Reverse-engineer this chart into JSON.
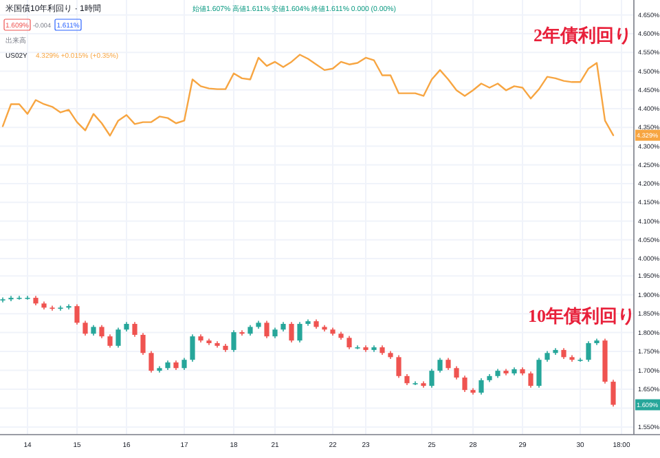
{
  "chart_data": {
    "type": "candlestick",
    "title": "米国債10年利回り · 1時間",
    "annotations": [
      "始値1.607% 高値1.611% 安値1.604% 終値1.611% 0.000 (0.00%)",
      "1.609%",
      "-0.004",
      "1.611%",
      "出来高",
      "4.329% +0.015% (+0.35%)",
      "2年債利回り",
      "10年債利回り",
      "4.329%",
      "1.609%"
    ],
    "categories": [
      null,
      null,
      null,
      "14",
      null,
      null,
      null,
      null,
      null,
      "15",
      null,
      null,
      null,
      null,
      null,
      "16",
      null,
      null,
      null,
      null,
      null,
      null,
      "17",
      null,
      null,
      null,
      null,
      null,
      "18",
      null,
      null,
      null,
      null,
      "21",
      null,
      null,
      null,
      null,
      null,
      null,
      "22",
      null,
      null,
      null,
      "23",
      null,
      null,
      null,
      null,
      null,
      null,
      null,
      "25",
      null,
      null,
      null,
      null,
      "28",
      null,
      null,
      null,
      null,
      null,
      "29",
      null,
      null,
      null,
      null,
      null,
      null,
      "30",
      null,
      null,
      null,
      null,
      "18:00"
    ],
    "series": [
      {
        "ohlc": [
          [
            1.885,
            1.893,
            1.88,
            1.888
          ],
          [
            1.888,
            1.897,
            1.883,
            1.892
          ],
          [
            1.892,
            1.897,
            1.887,
            1.892
          ],
          [
            1.892,
            1.897,
            1.887,
            1.892
          ],
          [
            1.892,
            1.897,
            1.872,
            1.877
          ],
          [
            1.877,
            1.882,
            1.861,
            1.866
          ],
          [
            1.866,
            1.871,
            1.858,
            1.863
          ],
          [
            1.863,
            1.871,
            1.858,
            1.866
          ],
          [
            1.866,
            1.875,
            1.861,
            1.87
          ],
          [
            1.87,
            1.875,
            1.821,
            1.826
          ],
          [
            1.826,
            1.831,
            1.792,
            1.797
          ],
          [
            1.797,
            1.82,
            1.792,
            1.815
          ],
          [
            1.815,
            1.82,
            1.785,
            1.79
          ],
          [
            1.79,
            1.795,
            1.76,
            1.765
          ],
          [
            1.765,
            1.813,
            1.76,
            1.808
          ],
          [
            1.808,
            1.828,
            1.803,
            1.823
          ],
          [
            1.823,
            1.828,
            1.789,
            1.794
          ],
          [
            1.794,
            1.799,
            1.741,
            1.746
          ],
          [
            1.746,
            1.751,
            1.694,
            1.699
          ],
          [
            1.699,
            1.711,
            1.694,
            1.706
          ],
          [
            1.706,
            1.726,
            1.701,
            1.721
          ],
          [
            1.721,
            1.726,
            1.701,
            1.706
          ],
          [
            1.706,
            1.733,
            1.701,
            1.728
          ],
          [
            1.728,
            1.795,
            1.723,
            1.79
          ],
          [
            1.79,
            1.795,
            1.774,
            1.779
          ],
          [
            1.779,
            1.784,
            1.767,
            1.772
          ],
          [
            1.772,
            1.777,
            1.76,
            1.765
          ],
          [
            1.765,
            1.77,
            1.749,
            1.754
          ],
          [
            1.754,
            1.806,
            1.749,
            1.801
          ],
          [
            1.801,
            1.806,
            1.792,
            1.797
          ],
          [
            1.797,
            1.82,
            1.792,
            1.815
          ],
          [
            1.815,
            1.831,
            1.81,
            1.826
          ],
          [
            1.826,
            1.831,
            1.785,
            1.79
          ],
          [
            1.79,
            1.813,
            1.785,
            1.808
          ],
          [
            1.808,
            1.828,
            1.803,
            1.823
          ],
          [
            1.823,
            1.828,
            1.774,
            1.779
          ],
          [
            1.779,
            1.828,
            1.774,
            1.823
          ],
          [
            1.823,
            1.835,
            1.818,
            1.83
          ],
          [
            1.83,
            1.835,
            1.81,
            1.815
          ],
          [
            1.815,
            1.82,
            1.803,
            1.808
          ],
          [
            1.808,
            1.813,
            1.792,
            1.797
          ],
          [
            1.797,
            1.802,
            1.781,
            1.786
          ],
          [
            1.786,
            1.791,
            1.756,
            1.761
          ],
          [
            1.761,
            1.766,
            1.756,
            1.761
          ],
          [
            1.761,
            1.766,
            1.749,
            1.754
          ],
          [
            1.754,
            1.766,
            1.749,
            1.761
          ],
          [
            1.761,
            1.766,
            1.741,
            1.746
          ],
          [
            1.746,
            1.751,
            1.73,
            1.735
          ],
          [
            1.735,
            1.74,
            1.68,
            1.685
          ],
          [
            1.685,
            1.69,
            1.661,
            1.666
          ],
          [
            1.666,
            1.671,
            1.661,
            1.666
          ],
          [
            1.666,
            1.671,
            1.654,
            1.659
          ],
          [
            1.659,
            1.704,
            1.654,
            1.699
          ],
          [
            1.699,
            1.733,
            1.694,
            1.728
          ],
          [
            1.728,
            1.733,
            1.701,
            1.706
          ],
          [
            1.706,
            1.711,
            1.676,
            1.681
          ],
          [
            1.681,
            1.686,
            1.643,
            1.648
          ],
          [
            1.648,
            1.653,
            1.636,
            1.641
          ],
          [
            1.641,
            1.679,
            1.636,
            1.674
          ],
          [
            1.674,
            1.69,
            1.669,
            1.685
          ],
          [
            1.685,
            1.704,
            1.68,
            1.699
          ],
          [
            1.699,
            1.704,
            1.687,
            1.692
          ],
          [
            1.692,
            1.708,
            1.687,
            1.703
          ],
          [
            1.703,
            1.708,
            1.687,
            1.692
          ],
          [
            1.692,
            1.697,
            1.654,
            1.659
          ],
          [
            1.659,
            1.733,
            1.654,
            1.728
          ],
          [
            1.728,
            1.751,
            1.723,
            1.746
          ],
          [
            1.746,
            1.759,
            1.741,
            1.754
          ],
          [
            1.754,
            1.759,
            1.73,
            1.735
          ],
          [
            1.735,
            1.74,
            1.723,
            1.728
          ],
          [
            1.728,
            1.733,
            1.723,
            1.728
          ],
          [
            1.728,
            1.777,
            1.723,
            1.772
          ],
          [
            1.772,
            1.784,
            1.767,
            1.779
          ],
          [
            1.779,
            1.784,
            1.665,
            1.67
          ],
          [
            1.67,
            1.675,
            1.604,
            1.609
          ],
          null
        ]
      },
      {
        "type": "line",
        "name": "US02Y",
        "axis": "y2",
        "color": "#f7a541",
        "values": [
          4.353,
          4.412,
          4.412,
          4.386,
          4.423,
          4.412,
          4.405,
          4.39,
          4.397,
          4.364,
          4.342,
          4.386,
          4.361,
          4.328,
          4.368,
          4.383,
          4.359,
          4.364,
          4.364,
          4.379,
          4.375,
          4.361,
          4.368,
          4.478,
          4.46,
          4.454,
          4.452,
          4.452,
          4.494,
          4.481,
          4.478,
          4.536,
          4.514,
          4.525,
          4.511,
          4.525,
          4.544,
          4.533,
          4.518,
          4.503,
          4.507,
          4.525,
          4.518,
          4.522,
          4.536,
          4.529,
          4.489,
          4.489,
          4.441,
          4.441,
          4.441,
          4.434,
          4.478,
          4.503,
          4.478,
          4.449,
          4.434,
          4.449,
          4.467,
          4.456,
          4.467,
          4.449,
          4.46,
          4.456,
          4.427,
          4.452,
          4.485,
          4.481,
          4.474,
          4.471,
          4.471,
          4.507,
          4.522,
          4.368,
          4.329,
          null
        ]
      }
    ],
    "ylim": [
      1.53,
      2.68
    ],
    "yticks": [
      {
        "value": 1.55,
        "label": "1.550%"
      },
      {
        "value": 1.6,
        "label": null
      },
      {
        "value": 1.65,
        "label": "1.650%"
      },
      {
        "value": 1.7,
        "label": "1.700%"
      },
      {
        "value": 1.75,
        "label": "1.750%"
      },
      {
        "value": 1.8,
        "label": "1.800%"
      },
      {
        "value": 1.85,
        "label": "1.850%"
      },
      {
        "value": 1.9,
        "label": "1.900%"
      },
      {
        "value": 1.95,
        "label": "1.950%"
      }
    ],
    "y2lim": [
      3.53,
      4.69
    ],
    "y2ticks": [
      {
        "value": 4.0,
        "label": "4.000%"
      },
      {
        "value": 4.05,
        "label": "4.050%"
      },
      {
        "value": 4.1,
        "label": "4.100%"
      },
      {
        "value": 4.15,
        "label": "4.150%"
      },
      {
        "value": 4.2,
        "label": "4.200%"
      },
      {
        "value": 4.25,
        "label": "4.250%"
      },
      {
        "value": 4.3,
        "label": "4.300%"
      },
      {
        "value": 4.35,
        "label": "4.350%"
      },
      {
        "value": 4.4,
        "label": "4.400%"
      },
      {
        "value": 4.45,
        "label": "4.450%"
      },
      {
        "value": 4.5,
        "label": "4.500%"
      },
      {
        "value": 4.55,
        "label": "4.550%"
      },
      {
        "value": 4.6,
        "label": "4.600%"
      },
      {
        "value": 4.65,
        "label": "4.650%"
      }
    ],
    "grid": true,
    "legend": "top left"
  }
}
